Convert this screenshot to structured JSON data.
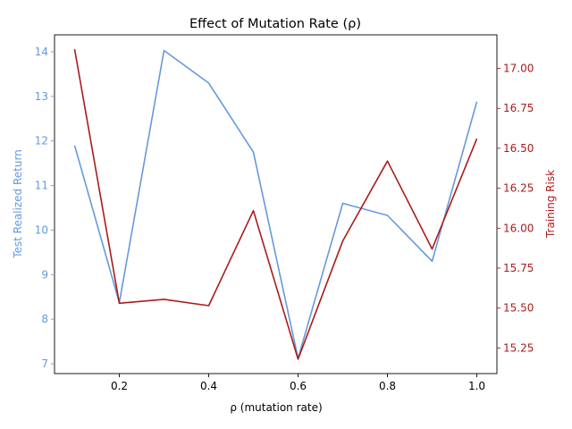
{
  "chart_data": {
    "type": "line",
    "title": "Effect of Mutation Rate (ρ)",
    "xlabel": "ρ (mutation rate)",
    "ylabel_left": "Test Realized Return",
    "ylabel_right": "Training Risk",
    "x": [
      0.1,
      0.2,
      0.3,
      0.4,
      0.5,
      0.6,
      0.7,
      0.8,
      0.9,
      1.0
    ],
    "xlim": [
      0.055,
      1.045
    ],
    "x_ticks": [
      "0.2",
      "0.4",
      "0.6",
      "0.8",
      "1.0"
    ],
    "y_left_lim": [
      6.78,
      14.38
    ],
    "y_left_ticks": [
      "7",
      "8",
      "9",
      "10",
      "11",
      "12",
      "13",
      "14"
    ],
    "y_right_lim": [
      15.09,
      17.21
    ],
    "y_right_ticks": [
      "15.25",
      "15.50",
      "15.75",
      "16.00",
      "16.25",
      "16.50",
      "16.75",
      "17.00"
    ],
    "series": [
      {
        "axis": "left",
        "color": "#6699dd",
        "values": [
          11.9,
          8.37,
          14.03,
          13.3,
          11.75,
          7.12,
          10.6,
          10.33,
          9.3,
          12.88
        ]
      },
      {
        "axis": "right",
        "color": "#aa1c1c",
        "values": [
          17.12,
          15.53,
          15.555,
          15.515,
          16.11,
          15.18,
          15.92,
          16.42,
          15.87,
          16.56
        ]
      }
    ],
    "grid": false
  }
}
